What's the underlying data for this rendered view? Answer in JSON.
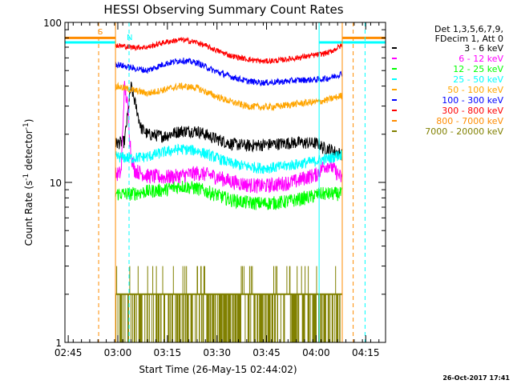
{
  "chart_data": {
    "type": "line",
    "title": "HESSI Observing Summary Count Rates",
    "xlabel": "Start Time (26-May-15 02:44:02)",
    "ylabel_main": "Count Rate (s",
    "ylabel_sup1": "-1",
    "ylabel_mid": " detector",
    "ylabel_sup2": "-1",
    "ylabel_end": ")",
    "y_scale": "log",
    "xlim_minutes": [
      0,
      97
    ],
    "ylim": [
      1,
      100
    ],
    "x_ticks": [
      {
        "label": "02:45",
        "min": 1
      },
      {
        "label": "03:00",
        "min": 16
      },
      {
        "label": "03:15",
        "min": 31
      },
      {
        "label": "03:30",
        "min": 46
      },
      {
        "label": "03:45",
        "min": 61
      },
      {
        "label": "04:00",
        "min": 76
      },
      {
        "label": "04:15",
        "min": 91
      }
    ],
    "y_ticks": [
      {
        "label": "100",
        "value": 100
      },
      {
        "label": "10",
        "value": 10
      },
      {
        "label": "1",
        "value": 1
      }
    ],
    "legend_header": [
      "Det 1,3,5,6,7,9,",
      "FDecim 1, Att 0"
    ],
    "markers": {
      "s_label": "S",
      "n_label": "N",
      "orange_dashed_min": [
        10.2,
        87.2
      ],
      "orange_solid_min": [
        15.3,
        83.9
      ],
      "cyan_dashed_min": [
        19.4,
        90.8
      ],
      "cyan_solid_min": [
        0,
        76.9
      ]
    },
    "series": [
      {
        "name": "3 - 6 keV",
        "color": "#000000",
        "points": [
          [
            15.3,
            17.5
          ],
          [
            18,
            18
          ],
          [
            20,
            40
          ],
          [
            22,
            27
          ],
          [
            23,
            22
          ],
          [
            25,
            20
          ],
          [
            30,
            19.5
          ],
          [
            35,
            21
          ],
          [
            40,
            21
          ],
          [
            45,
            19
          ],
          [
            50,
            17.5
          ],
          [
            55,
            17
          ],
          [
            60,
            17.2
          ],
          [
            65,
            17.5
          ],
          [
            70,
            17.8
          ],
          [
            76.9,
            17.5
          ],
          [
            78,
            16.5
          ],
          [
            80,
            16.2
          ],
          [
            82,
            15.5
          ],
          [
            83.9,
            15
          ]
        ]
      },
      {
        "name": "6 - 12 keV",
        "color": "#ff00ff",
        "points": [
          [
            15.3,
            11.2
          ],
          [
            17,
            11.5
          ],
          [
            18,
            40
          ],
          [
            19,
            30
          ],
          [
            20,
            15
          ],
          [
            21,
            12
          ],
          [
            25,
            11
          ],
          [
            30,
            10.8
          ],
          [
            35,
            11
          ],
          [
            40,
            11.5
          ],
          [
            45,
            11
          ],
          [
            50,
            10.2
          ],
          [
            55,
            9.7
          ],
          [
            60,
            9.5
          ],
          [
            65,
            9.8
          ],
          [
            70,
            10.2
          ],
          [
            73,
            10.8
          ],
          [
            76,
            11.2
          ],
          [
            78,
            12.5
          ],
          [
            80,
            13
          ],
          [
            83.9,
            10.5
          ]
        ]
      },
      {
        "name": "12 - 25 keV",
        "color": "#00ff00",
        "points": [
          [
            15.3,
            8.5
          ],
          [
            20,
            8.5
          ],
          [
            25,
            8.8
          ],
          [
            30,
            9
          ],
          [
            35,
            9.5
          ],
          [
            40,
            9.2
          ],
          [
            45,
            8.5
          ],
          [
            50,
            7.8
          ],
          [
            55,
            7.5
          ],
          [
            60,
            7.4
          ],
          [
            65,
            7.5
          ],
          [
            70,
            7.8
          ],
          [
            75,
            8.2
          ],
          [
            76.9,
            8.5
          ],
          [
            80,
            8.5
          ],
          [
            83.9,
            8.5
          ]
        ]
      },
      {
        "name": "25 - 50 keV",
        "color": "#00ffff",
        "points": [
          [
            15.3,
            14.5
          ],
          [
            20,
            14.2
          ],
          [
            25,
            14.5
          ],
          [
            30,
            15.5
          ],
          [
            35,
            16.2
          ],
          [
            40,
            15.8
          ],
          [
            45,
            14.5
          ],
          [
            50,
            13.2
          ],
          [
            55,
            12.6
          ],
          [
            60,
            12.3
          ],
          [
            65,
            12.5
          ],
          [
            70,
            13
          ],
          [
            75,
            13.5
          ],
          [
            76.9,
            13.8
          ],
          [
            80,
            14.2
          ],
          [
            83.9,
            15
          ]
        ]
      },
      {
        "name": "50 - 100 keV",
        "color": "#ffa500",
        "points": [
          [
            15.3,
            40
          ],
          [
            20,
            38
          ],
          [
            25,
            36
          ],
          [
            30,
            38
          ],
          [
            35,
            40
          ],
          [
            40,
            39
          ],
          [
            45,
            35
          ],
          [
            50,
            32
          ],
          [
            55,
            30
          ],
          [
            60,
            29.5
          ],
          [
            65,
            30
          ],
          [
            70,
            31
          ],
          [
            76.9,
            32
          ],
          [
            80,
            33
          ],
          [
            83.9,
            35
          ]
        ]
      },
      {
        "name": "100 - 300 keV",
        "color": "#0000ff",
        "points": [
          [
            15.3,
            55
          ],
          [
            20,
            52
          ],
          [
            25,
            50
          ],
          [
            30,
            55
          ],
          [
            35,
            58
          ],
          [
            40,
            56
          ],
          [
            45,
            50
          ],
          [
            50,
            46
          ],
          [
            55,
            43
          ],
          [
            60,
            42
          ],
          [
            65,
            42.5
          ],
          [
            70,
            43.5
          ],
          [
            76.9,
            44
          ],
          [
            80,
            45
          ],
          [
            83.9,
            48
          ]
        ]
      },
      {
        "name": "300 - 800 keV",
        "color": "#ff0000",
        "points": [
          [
            15.3,
            72
          ],
          [
            20,
            70
          ],
          [
            25,
            70
          ],
          [
            30,
            75
          ],
          [
            35,
            78
          ],
          [
            40,
            75
          ],
          [
            45,
            68
          ],
          [
            50,
            62
          ],
          [
            55,
            59
          ],
          [
            60,
            57
          ],
          [
            65,
            58
          ],
          [
            70,
            60
          ],
          [
            76.9,
            63
          ],
          [
            80,
            65
          ],
          [
            83.9,
            72
          ]
        ]
      },
      {
        "name": "800 - 7000 keV",
        "color": "#ff8c00",
        "points": [
          [
            0,
            80
          ],
          [
            15.3,
            80
          ]
        ]
      },
      {
        "name": "7000 - 20000 keV",
        "color": "#808000",
        "points": [
          [
            15.3,
            2
          ],
          [
            20,
            2
          ],
          [
            30,
            2
          ],
          [
            40,
            2
          ],
          [
            50,
            2
          ],
          [
            60,
            2
          ],
          [
            70,
            2
          ],
          [
            76.9,
            2
          ],
          [
            83.9,
            2
          ]
        ]
      }
    ],
    "olive_noise_band": {
      "min": 15.3,
      "max": 83.9,
      "levels": [
        1,
        2,
        3
      ]
    },
    "timestamp": "26-Oct-2017 17:41"
  }
}
